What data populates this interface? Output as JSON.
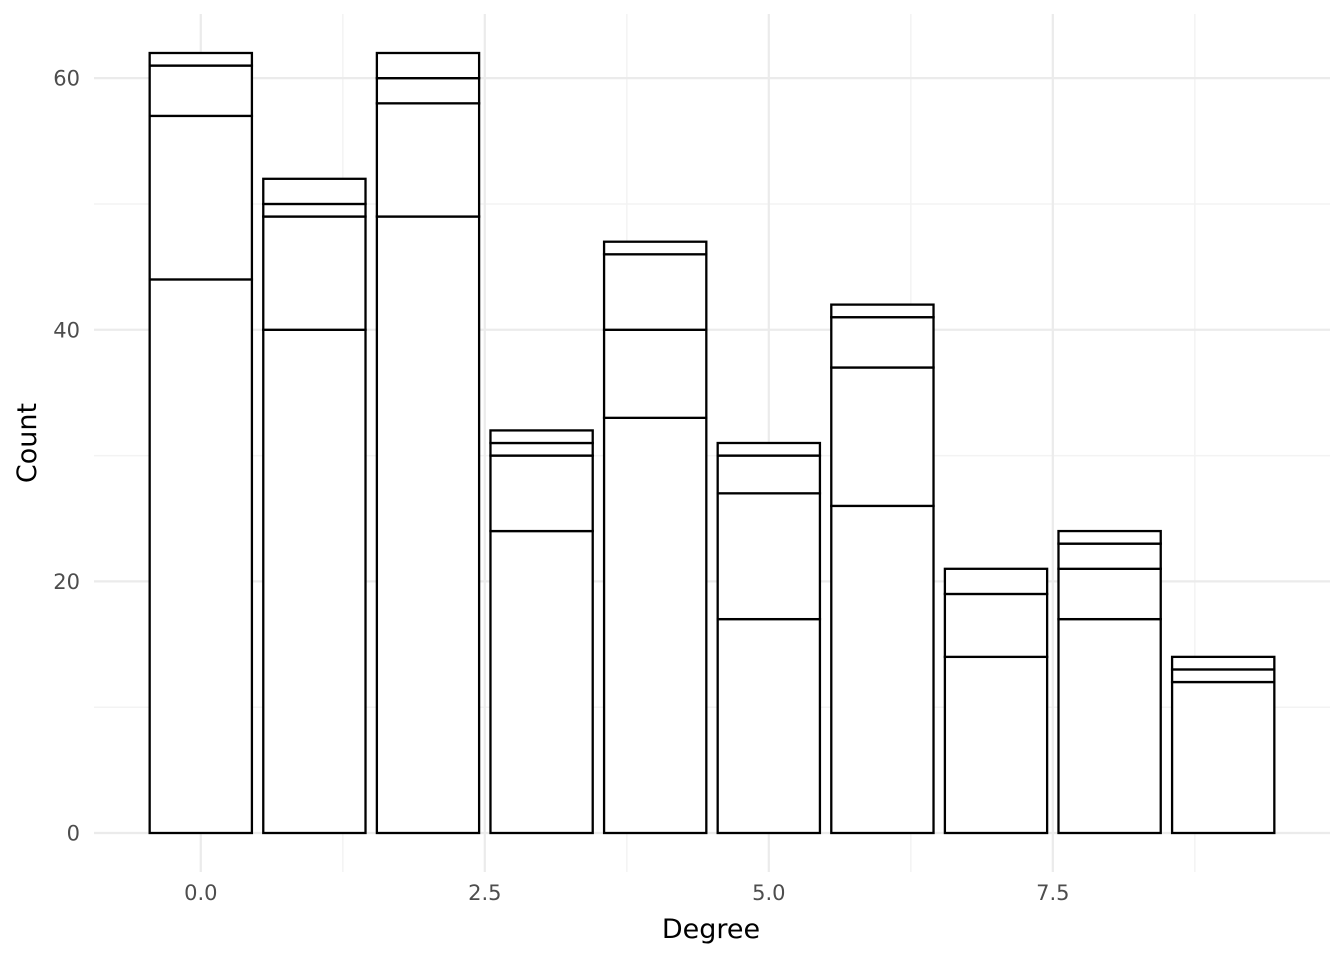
{
  "chart_data": {
    "type": "bar",
    "stacked": true,
    "xlabel": "Degree",
    "ylabel": "Count",
    "x": [
      0,
      1,
      2,
      3,
      4,
      5,
      6,
      7,
      8,
      9
    ],
    "bar_width": 0.9,
    "stack_boundaries": [
      [
        44,
        57,
        61,
        62
      ],
      [
        40,
        49,
        50,
        52
      ],
      [
        49,
        58,
        60,
        62
      ],
      [
        24,
        30,
        31,
        32
      ],
      [
        33,
        40,
        46,
        47
      ],
      [
        17,
        27,
        30,
        31
      ],
      [
        26,
        37,
        41,
        42
      ],
      [
        14,
        19,
        21
      ],
      [
        17,
        21,
        23,
        24
      ],
      [
        12,
        13,
        14
      ]
    ],
    "totals": [
      62,
      52,
      62,
      32,
      47,
      31,
      42,
      21,
      24,
      14
    ],
    "xlim": [
      -0.94,
      9.94
    ],
    "ylim": [
      -3.1,
      65.1
    ],
    "x_ticks": [
      0.0,
      2.5,
      5.0,
      7.5
    ],
    "x_tick_labels": [
      "0.0",
      "2.5",
      "5.0",
      "7.5"
    ],
    "y_ticks": [
      0,
      20,
      40,
      60
    ],
    "y_tick_labels": [
      "0",
      "20",
      "40",
      "60"
    ],
    "grid": true,
    "legend": "none",
    "colors": {
      "bar_fill": "#ffffff",
      "bar_outline": "#000000",
      "grid_major": "#ebebeb",
      "grid_minor": "#f3f3f3",
      "tick_text": "#4d4d4d"
    }
  }
}
